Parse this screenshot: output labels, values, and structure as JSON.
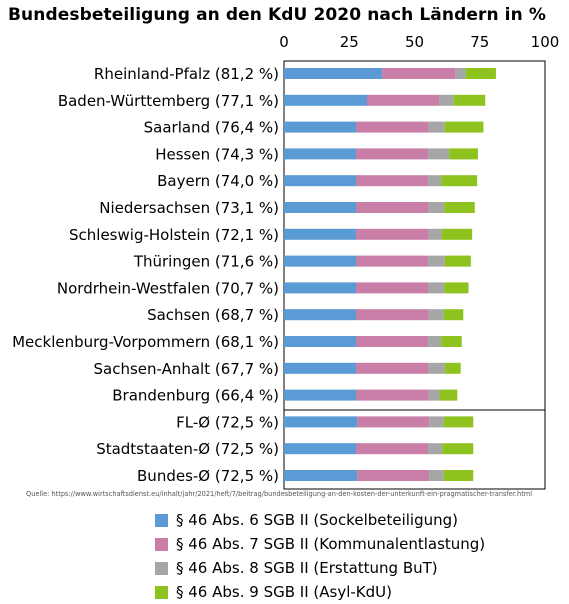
{
  "chart_data": {
    "type": "bar",
    "orientation": "horizontal",
    "stacked": true,
    "title": "Bundesbeteiligung an den KdU 2020 nach Ländern in %",
    "xlim": [
      0,
      100
    ],
    "x_ticks": [
      "0",
      "25",
      "50",
      "75",
      "100"
    ],
    "x_axis_position": "top",
    "grid": false,
    "legend_position": "bottom",
    "categories": [
      "Rheinland-Pfalz (81,2 %)",
      "Baden-Württemberg (77,1 %)",
      "Saarland (76,4 %)",
      "Hessen (74,3 %)",
      "Bayern (74,0 %)",
      "Niedersachsen (73,1 %)",
      "Schleswig-Holstein (72,1 %)",
      "Thüringen (71,6 %)",
      "Nordrhein-Westfalen (70,7 %)",
      "Sachsen (68,7 %)",
      "Mecklenburg-Vorpommern (68,1 %)",
      "Sachsen-Anhalt (67,7 %)",
      "Brandenburg (66,4 %)",
      "FL-Ø (72,5 %)",
      "Stadtstaaten-Ø (72,5 %)",
      "Bundes-Ø (72,5 %)"
    ],
    "separator_after_index": 12,
    "series": [
      {
        "name": "§ 46 Abs. 6 SGB II (Sockelbeteiligung)",
        "color": "#5b9bd5",
        "values": [
          37.6,
          31.8,
          27.6,
          27.6,
          27.6,
          27.6,
          27.6,
          27.6,
          27.6,
          27.6,
          27.6,
          27.6,
          27.6,
          28.0,
          27.6,
          28.0
        ]
      },
      {
        "name": "§ 46 Abs. 7 SGB II (Kommunalentlastung)",
        "color": "#c87ea7",
        "values": [
          28.2,
          27.6,
          27.8,
          27.6,
          27.6,
          27.8,
          27.8,
          27.6,
          27.8,
          27.8,
          27.6,
          27.8,
          27.8,
          27.6,
          27.6,
          27.6
        ]
      },
      {
        "name": "§ 46 Abs. 8 SGB II (Erstattung BuT)",
        "color": "#a6a6a6",
        "values": [
          3.8,
          5.6,
          6.2,
          8.1,
          5.0,
          6.0,
          5.0,
          6.4,
          6.0,
          5.8,
          5.0,
          6.2,
          4.2,
          5.6,
          5.4,
          5.6
        ]
      },
      {
        "name": "§ 46 Abs. 9 SGB II (Asyl-KdU)",
        "color": "#8dc21f",
        "values": [
          11.6,
          12.1,
          14.8,
          11.0,
          13.8,
          11.7,
          11.7,
          10.0,
          9.3,
          7.5,
          7.9,
          6.1,
          6.8,
          11.3,
          11.9,
          11.3
        ]
      }
    ]
  },
  "source": "Quelle: https://www.wirtschaftsdienst.eu/inhalt/jahr/2021/heft/7/beitrag/bundesbeteiligung-an-den-kosten-der-unterkunft-ein-pragmatischer-transfer.html"
}
